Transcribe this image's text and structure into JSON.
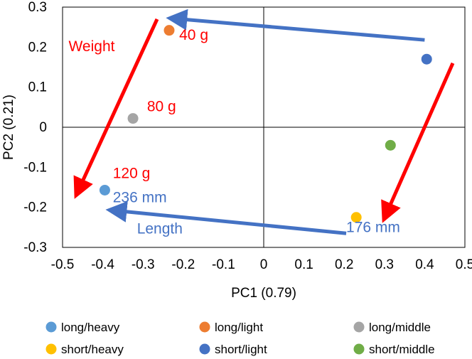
{
  "chart_data": {
    "type": "scatter",
    "title": "",
    "xlabel": "PC1 (0.79)",
    "ylabel": "PC2 (0.21)",
    "xlim": [
      -0.5,
      0.5
    ],
    "ylim": [
      -0.3,
      0.3
    ],
    "xticks": [
      "-0.5",
      "-0.4",
      "-0.3",
      "-0.2",
      "-0.1",
      "0",
      "0.1",
      "0.2",
      "0.3",
      "0.4",
      "0.5"
    ],
    "yticks": [
      "0.3",
      "0.2",
      "0.1",
      "0",
      "-0.1",
      "-0.2",
      "-0.3"
    ],
    "grid": false,
    "legend_position": "bottom",
    "series": [
      {
        "name": "long/heavy",
        "x": -0.395,
        "y": -0.157,
        "color": "#5B9BD5"
      },
      {
        "name": "long/light",
        "x": -0.235,
        "y": 0.242,
        "color": "#ED7D31"
      },
      {
        "name": "long/middle",
        "x": -0.325,
        "y": 0.022,
        "color": "#A5A5A5"
      },
      {
        "name": "short/heavy",
        "x": 0.23,
        "y": -0.225,
        "color": "#FFC000"
      },
      {
        "name": "short/light",
        "x": 0.405,
        "y": 0.17,
        "color": "#4472C4"
      },
      {
        "name": "short/middle",
        "x": 0.315,
        "y": -0.045,
        "color": "#70AD47"
      }
    ],
    "annotations": [
      {
        "text": "Weight",
        "x": -0.485,
        "y": 0.19,
        "color": "#FF0000"
      },
      {
        "text": "40 g",
        "x": -0.21,
        "y": 0.218,
        "color": "#FF0000"
      },
      {
        "text": "80 g",
        "x": -0.29,
        "y": 0.04,
        "color": "#FF0000"
      },
      {
        "text": "120 g",
        "x": -0.375,
        "y": -0.127,
        "color": "#FF0000"
      },
      {
        "text": "236 mm",
        "x": -0.375,
        "y": -0.187,
        "color": "#4472C4"
      },
      {
        "text": "Length",
        "x": -0.315,
        "y": -0.265,
        "color": "#4472C4"
      },
      {
        "text": "176 mm",
        "x": 0.205,
        "y": -0.262,
        "color": "#4472C4"
      }
    ],
    "arrows": [
      {
        "name": "length-arrow-top",
        "from": [
          0.4,
          0.218
        ],
        "to": [
          -0.23,
          0.272
        ],
        "color": "#4472C4"
      },
      {
        "name": "length-arrow-bottom",
        "from": [
          0.205,
          -0.265
        ],
        "to": [
          -0.38,
          -0.207
        ],
        "color": "#4472C4"
      },
      {
        "name": "weight-arrow-left",
        "from": [
          -0.265,
          0.27
        ],
        "to": [
          -0.465,
          -0.167
        ],
        "color": "#FF0000"
      },
      {
        "name": "weight-arrow-right",
        "from": [
          0.47,
          0.16
        ],
        "to": [
          0.3,
          -0.227
        ],
        "color": "#FF0000"
      }
    ]
  }
}
